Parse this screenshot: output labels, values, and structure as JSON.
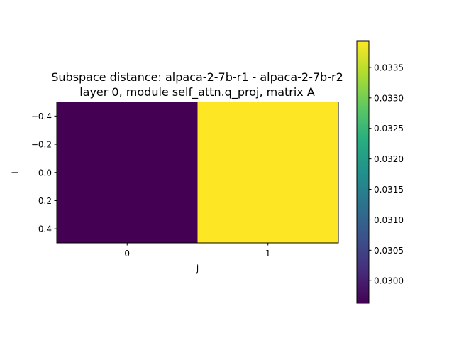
{
  "chart_data": {
    "type": "heatmap",
    "title_line1": "Subspace distance: alpaca-2-7b-r1 - alpaca-2-7b-r2",
    "title_line2": "layer 0, module self_attn.q_proj, matrix A",
    "xlabel": "j",
    "ylabel": "i",
    "x_ticks": [
      0,
      1
    ],
    "y_ticks": [
      -0.4,
      -0.2,
      0.0,
      0.2,
      0.4
    ],
    "xlim": [
      -0.5,
      1.5
    ],
    "ylim": [
      0.5,
      -0.5
    ],
    "rows": [
      "0"
    ],
    "columns": [
      "0",
      "1"
    ],
    "values": [
      [
        0.02963,
        0.03393
      ]
    ],
    "colormap": "viridis",
    "colorbar": {
      "vmin": 0.02963,
      "vmax": 0.03393,
      "ticks": [
        0.03,
        0.0305,
        0.031,
        0.0315,
        0.032,
        0.0325,
        0.033,
        0.0335
      ],
      "tick_labels": [
        "0.0300",
        "0.0305",
        "0.0310",
        "0.0315",
        "0.0320",
        "0.0325",
        "0.0330",
        "0.0335"
      ]
    },
    "grid": false
  }
}
